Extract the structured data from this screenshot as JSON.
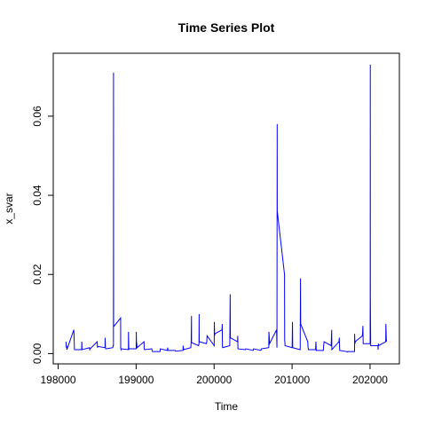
{
  "chart_data": {
    "type": "line",
    "title": "Time Series Plot",
    "x_label": "Time",
    "y_label": "x_svar",
    "color": "#0000ff",
    "x": [
      198101,
      198104,
      198108,
      198112,
      198201,
      198203,
      198206,
      198209,
      198301,
      198303,
      198306,
      198310,
      198401,
      198405,
      198410,
      198501,
      198504,
      198510,
      198601,
      198602,
      198606,
      198610,
      198701,
      198705,
      198709,
      198710,
      198711,
      198712,
      198801,
      198802,
      198806,
      198810,
      198901,
      198902,
      198906,
      198910,
      199001,
      199002,
      199004,
      199008,
      199012,
      199101,
      199103,
      199108,
      199201,
      199206,
      199210,
      199301,
      199306,
      199310,
      199401,
      199404,
      199410,
      199501,
      199506,
      199601,
      199603,
      199609,
      199701,
      199706,
      199710,
      199711,
      199801,
      199806,
      199808,
      199809,
      199901,
      199906,
      199910,
      200001,
      200003,
      200006,
      200010,
      200101,
      200104,
      200107,
      200109,
      200201,
      200206,
      200207,
      200209,
      200301,
      200303,
      200306,
      200401,
      200406,
      200501,
      200506,
      200601,
      200606,
      200701,
      200703,
      200708,
      200711,
      200801,
      200806,
      200809,
      200810,
      200903,
      200905,
      200910,
      201001,
      201005,
      201008,
      201101,
      201104,
      201108,
      201110,
      201201,
      201205,
      201210,
      201301,
      201306,
      201310,
      201401,
      201405,
      201410,
      201501,
      201508,
      201510,
      201601,
      201606,
      201610,
      201701,
      201706,
      201710,
      201801,
      201802,
      201806,
      201810,
      201901,
      201905,
      201908,
      201912,
      202001,
      202002,
      202003,
      202004,
      202008,
      202101,
      202103,
      202106,
      202110,
      202201,
      202203,
      202206,
      202209,
      202212
    ],
    "values": [
      0.003,
      0.0015,
      0.002,
      0.001,
      0.006,
      0.005,
      0.003,
      0.001,
      0.001,
      0.003,
      0.0012,
      0.001,
      0.0015,
      0.001,
      0.0012,
      0.003,
      0.0015,
      0.0018,
      0.0015,
      0.004,
      0.0015,
      0.0012,
      0.0015,
      0.002,
      0.002,
      0.071,
      0.007,
      0.0068,
      0.009,
      0.0015,
      0.001,
      0.0012,
      0.001,
      0.0055,
      0.001,
      0.0012,
      0.0012,
      0.0055,
      0.003,
      0.0025,
      0.0015,
      0.003,
      0.0012,
      0.001,
      0.0012,
      0.0006,
      0.0005,
      0.0005,
      0.0005,
      0.0012,
      0.0008,
      0.0015,
      0.0008,
      0.0008,
      0.0006,
      0.0008,
      0.002,
      0.001,
      0.0015,
      0.003,
      0.0095,
      0.0028,
      0.002,
      0.0025,
      0.01,
      0.003,
      0.0025,
      0.003,
      0.0045,
      0.002,
      0.008,
      0.0045,
      0.005,
      0.006,
      0.0075,
      0.002,
      0.0015,
      0.002,
      0.015,
      0.011,
      0.004,
      0.003,
      0.0045,
      0.0012,
      0.001,
      0.0012,
      0.0008,
      0.0012,
      0.0008,
      0.0012,
      0.0015,
      0.0055,
      0.004,
      0.0025,
      0.006,
      0.0015,
      0.058,
      0.036,
      0.02,
      0.0035,
      0.002,
      0.0015,
      0.008,
      0.0015,
      0.001,
      0.001,
      0.019,
      0.0075,
      0.003,
      0.0015,
      0.001,
      0.001,
      0.003,
      0.0008,
      0.0008,
      0.002,
      0.003,
      0.002,
      0.006,
      0.001,
      0.003,
      0.004,
      0.0008,
      0.0005,
      0.0004,
      0.0005,
      0.0005,
      0.005,
      0.0025,
      0.003,
      0.0045,
      0.0055,
      0.007,
      0.0025,
      0.0025,
      0.014,
      0.073,
      0.014,
      0.002,
      0.002,
      0.001,
      0.0025,
      0.002,
      0.003,
      0.0075,
      0.0055,
      0.003,
      0.0035
    ],
    "xlim": [
      197937,
      202376
    ],
    "ylim": [
      -0.0026,
      0.0759
    ],
    "xticks": [
      198000,
      199000,
      200000,
      201000,
      202000
    ],
    "yticks": [
      {
        "value": 0,
        "label": "0.00"
      },
      0.02,
      0.04,
      0.06
    ]
  }
}
